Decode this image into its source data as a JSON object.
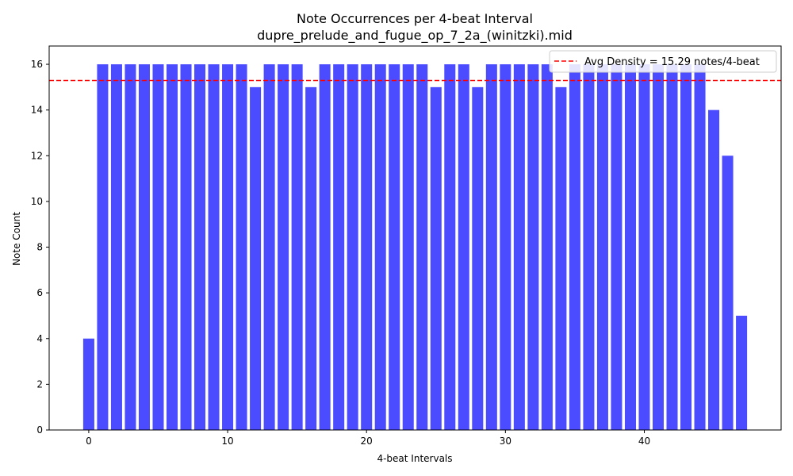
{
  "chart_data": {
    "type": "bar",
    "title": "Note Occurrences per 4-beat Interval",
    "subtitle": "dupre_prelude_and_fugue_op_7_2a_(winitzki).mid",
    "xlabel": "4-beat Intervals",
    "ylabel": "Note Count",
    "x": [
      0,
      1,
      2,
      3,
      4,
      5,
      6,
      7,
      8,
      9,
      10,
      11,
      12,
      13,
      14,
      15,
      16,
      17,
      18,
      19,
      20,
      21,
      22,
      23,
      24,
      25,
      26,
      27,
      28,
      29,
      30,
      31,
      32,
      33,
      34,
      35,
      36,
      37,
      38,
      39,
      40,
      41,
      42,
      43,
      44,
      45,
      46,
      47
    ],
    "values": [
      4,
      16,
      16,
      16,
      16,
      16,
      16,
      16,
      16,
      16,
      16,
      16,
      15,
      16,
      16,
      16,
      15,
      16,
      16,
      16,
      16,
      16,
      16,
      16,
      16,
      15,
      16,
      16,
      15,
      16,
      16,
      16,
      16,
      16,
      15,
      16,
      16,
      16,
      16,
      16,
      16,
      16,
      16,
      16,
      16,
      14,
      12,
      5
    ],
    "xlim": [
      -2.85,
      49.85
    ],
    "ylim": [
      0,
      16.8
    ],
    "xticks": [
      0,
      10,
      20,
      30,
      40
    ],
    "yticks": [
      0,
      2,
      4,
      6,
      8,
      10,
      12,
      14,
      16
    ],
    "bar_color": "#4b4bff",
    "avg_line": {
      "value": 15.29,
      "color": "#ff0000",
      "label": "Avg Density = 15.29 notes/4-beat"
    },
    "legend": "upper right",
    "grid": false
  }
}
